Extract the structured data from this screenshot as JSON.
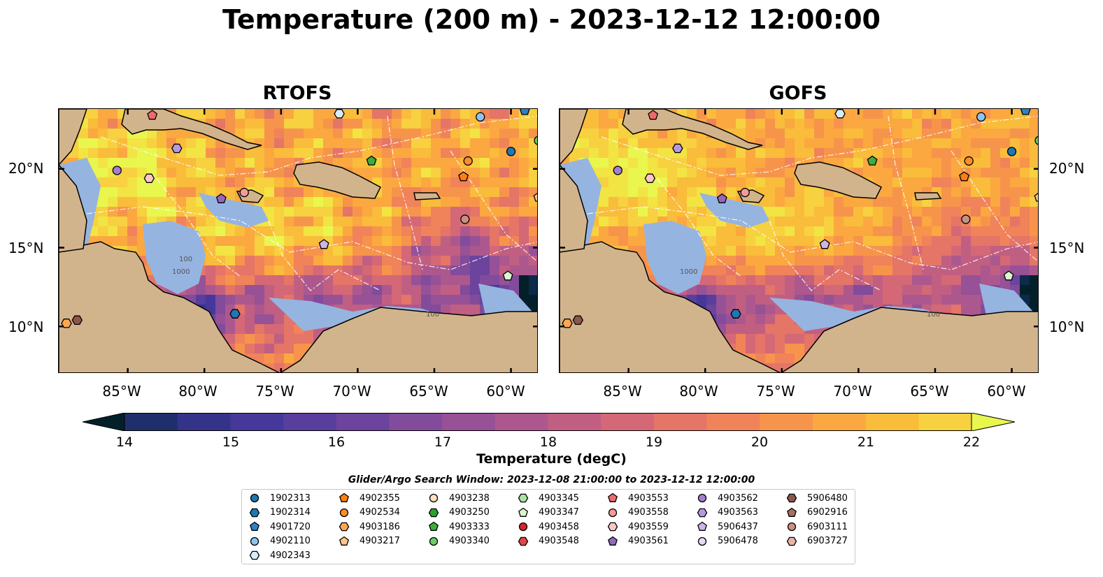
{
  "title": "Temperature (200 m) - 2023-12-12 12:00:00",
  "colors": {
    "land": "#d2b48c",
    "shelf": "#96b4e0",
    "coast": "#000000",
    "contour": "#ffffff",
    "colormap": [
      "#03202a",
      "#0c2a4a",
      "#1f2f6b",
      "#34338a",
      "#45389a",
      "#583f9d",
      "#6c449d",
      "#824b9b",
      "#975196",
      "#ac588e",
      "#c15f82",
      "#d46876",
      "#e47567",
      "#f08359",
      "#f7944c",
      "#fba840",
      "#f9bc3b",
      "#f7d13f",
      "#f2e443",
      "#e9f64e"
    ]
  },
  "chart_data": [
    {
      "type": "heatmap",
      "title": "RTOFS",
      "xlim": [
        -89.5,
        -58.2
      ],
      "ylim": [
        7.0,
        23.8
      ],
      "x_ticks": [
        "85°W",
        "80°W",
        "75°W",
        "70°W",
        "65°W",
        "60°W"
      ],
      "x_tick_values": [
        -85,
        -80,
        -75,
        -70,
        -65,
        -60
      ],
      "y_ticks": [
        "10°N",
        "15°N",
        "20°N"
      ],
      "y_tick_values": [
        10,
        15,
        20
      ],
      "y_tick_side": "left",
      "contour_labels": [
        "100",
        "1000",
        "100"
      ]
    },
    {
      "type": "heatmap",
      "title": "GOFS",
      "xlim": [
        -89.5,
        -58.2
      ],
      "ylim": [
        7.0,
        23.8
      ],
      "x_ticks": [
        "85°W",
        "80°W",
        "75°W",
        "70°W",
        "65°W",
        "60°W"
      ],
      "x_tick_values": [
        -85,
        -80,
        -75,
        -70,
        -65,
        -60
      ],
      "y_ticks": [
        "10°N",
        "15°N",
        "20°N"
      ],
      "y_tick_values": [
        10,
        15,
        20
      ],
      "y_tick_side": "right",
      "contour_labels": [
        "1000",
        "100"
      ]
    }
  ],
  "colorbar": {
    "label": "Temperature (degC)",
    "min": 14,
    "max": 22,
    "ticks": [
      "14",
      "15",
      "16",
      "17",
      "18",
      "19",
      "20",
      "21",
      "22"
    ],
    "extend": "both"
  },
  "search_window": "Glider/Argo Search Window: 2023-12-08 21:00:00 to 2023-12-12 12:00:00",
  "legend": [
    {
      "label": "1902313",
      "marker": "circle",
      "color": "#1f77b4"
    },
    {
      "label": "1902314",
      "marker": "hexagon",
      "color": "#1f77b4"
    },
    {
      "label": "4901720",
      "marker": "pentagon",
      "color": "#2c82c9"
    },
    {
      "label": "4902110",
      "marker": "circle",
      "color": "#8cc4ee"
    },
    {
      "label": "4902343",
      "marker": "hexagon",
      "color": "#d6ecfa"
    },
    {
      "label": "4902355",
      "marker": "pentagon",
      "color": "#ff7f0e"
    },
    {
      "label": "4902534",
      "marker": "circle",
      "color": "#ff8c2a"
    },
    {
      "label": "4903186",
      "marker": "hexagon",
      "color": "#ffa653"
    },
    {
      "label": "4903217",
      "marker": "pentagon",
      "color": "#ffc68c"
    },
    {
      "label": "4903238",
      "marker": "circle",
      "color": "#ffe0c0"
    },
    {
      "label": "4903250",
      "marker": "hexagon",
      "color": "#2ca02c"
    },
    {
      "label": "4903333",
      "marker": "pentagon",
      "color": "#3cae3c"
    },
    {
      "label": "4903340",
      "marker": "circle",
      "color": "#6ccc6c"
    },
    {
      "label": "4903345",
      "marker": "hexagon",
      "color": "#a8e6a0"
    },
    {
      "label": "4903347",
      "marker": "pentagon",
      "color": "#d8f5d0"
    },
    {
      "label": "4903458",
      "marker": "circle",
      "color": "#d62728"
    },
    {
      "label": "4903548",
      "marker": "hexagon",
      "color": "#e0464a"
    },
    {
      "label": "4903553",
      "marker": "pentagon",
      "color": "#ec6a6c"
    },
    {
      "label": "4903558",
      "marker": "circle",
      "color": "#f59a9a"
    },
    {
      "label": "4903559",
      "marker": "hexagon",
      "color": "#fcc7c7"
    },
    {
      "label": "4903561",
      "marker": "pentagon",
      "color": "#9467bd"
    },
    {
      "label": "4903562",
      "marker": "circle",
      "color": "#a47fd0"
    },
    {
      "label": "4903563",
      "marker": "hexagon",
      "color": "#b898e0"
    },
    {
      "label": "5906437",
      "marker": "pentagon",
      "color": "#cdb5ec"
    },
    {
      "label": "5906478",
      "marker": "circle",
      "color": "#e5d8f8"
    },
    {
      "label": "5906480",
      "marker": "hexagon",
      "color": "#8c564b"
    },
    {
      "label": "6902916",
      "marker": "pentagon",
      "color": "#a86f63"
    },
    {
      "label": "6903111",
      "marker": "circle",
      "color": "#c99183"
    },
    {
      "label": "6903727",
      "marker": "hexagon",
      "color": "#e8b4a6"
    }
  ],
  "floats": [
    {
      "lon": -83.4,
      "lat": 23.4,
      "id": "4903553"
    },
    {
      "lon": -71.2,
      "lat": 23.5,
      "id": "4902343"
    },
    {
      "lon": -62.0,
      "lat": 23.3,
      "id": "4902110"
    },
    {
      "lon": -59.1,
      "lat": 23.7,
      "id": "4901720"
    },
    {
      "lon": -81.8,
      "lat": 21.3,
      "id": "4903563"
    },
    {
      "lon": -85.7,
      "lat": 19.9,
      "id": "4903562"
    },
    {
      "lon": -83.6,
      "lat": 19.4,
      "id": "4903559"
    },
    {
      "lon": -78.9,
      "lat": 18.1,
      "id": "4903561"
    },
    {
      "lon": -77.4,
      "lat": 18.5,
      "id": "4903558"
    },
    {
      "lon": -69.1,
      "lat": 20.5,
      "id": "4903333"
    },
    {
      "lon": -62.8,
      "lat": 20.5,
      "id": "4902534"
    },
    {
      "lon": -63.1,
      "lat": 19.5,
      "id": "4902355"
    },
    {
      "lon": -60.0,
      "lat": 21.1,
      "id": "1902313"
    },
    {
      "lon": -58.2,
      "lat": 21.8,
      "id": "4903340"
    },
    {
      "lon": -58.2,
      "lat": 18.2,
      "id": "4903217"
    },
    {
      "lon": -63.0,
      "lat": 16.8,
      "id": "6903111"
    },
    {
      "lon": -72.2,
      "lat": 15.2,
      "id": "5906437"
    },
    {
      "lon": -60.2,
      "lat": 13.2,
      "id": "4903347"
    },
    {
      "lon": -78.0,
      "lat": 10.8,
      "id": "1902314"
    },
    {
      "lon": -89.0,
      "lat": 10.2,
      "id": "4903186"
    },
    {
      "lon": -88.3,
      "lat": 10.4,
      "id": "5906480"
    }
  ]
}
